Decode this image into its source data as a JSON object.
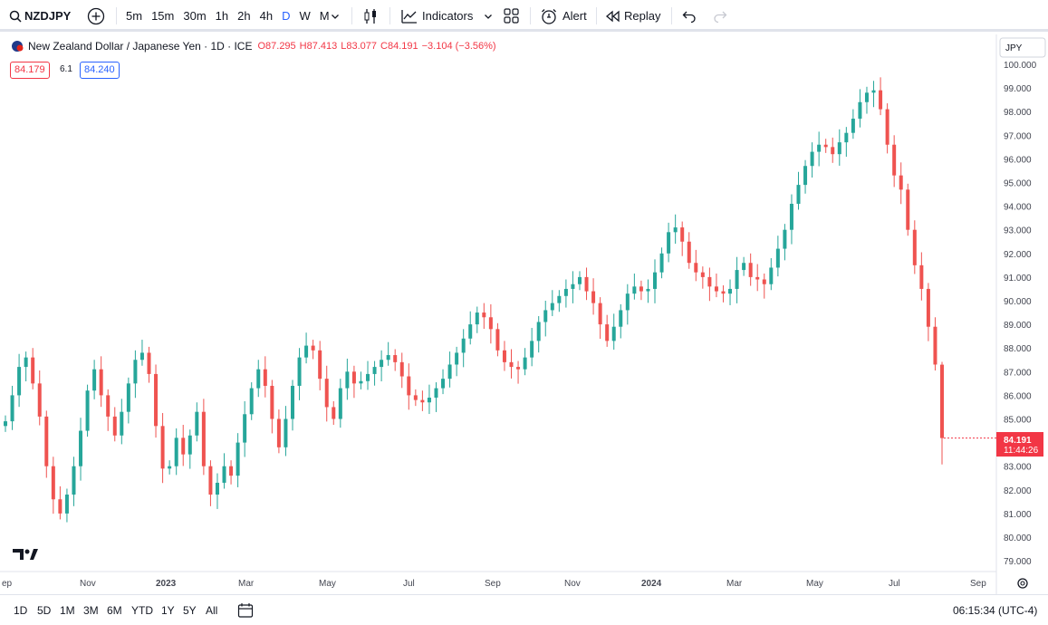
{
  "toolbar": {
    "symbol": "NZDJPY",
    "intervals": [
      "5m",
      "15m",
      "30m",
      "1h",
      "2h",
      "4h",
      "D",
      "W",
      "M"
    ],
    "active_interval": "D",
    "indicators_label": "Indicators",
    "alert_label": "Alert",
    "replay_label": "Replay"
  },
  "legend": {
    "title": "New Zealand Dollar / Japanese Yen · 1D · ICE",
    "open": "O87.295",
    "high": "H87.413",
    "low": "L83.077",
    "close": "C84.191",
    "change": "−3.104 (−3.56%)",
    "bid": "84.179",
    "spread": "6.1",
    "ask": "84.240"
  },
  "price_axis": {
    "currency": "JPY",
    "ticks": [
      "100.000",
      "99.000",
      "98.000",
      "97.000",
      "96.000",
      "95.000",
      "94.000",
      "93.000",
      "92.000",
      "91.000",
      "90.000",
      "89.000",
      "88.000",
      "87.000",
      "86.000",
      "85.000",
      "84.000",
      "83.000",
      "82.000",
      "81.000",
      "80.000",
      "79.000"
    ],
    "last_price": "84.191",
    "countdown": "11:44:26"
  },
  "time_axis": {
    "labels": [
      "ep",
      "Nov",
      "2023",
      "Mar",
      "May",
      "Jul",
      "Sep",
      "Nov",
      "2024",
      "Mar",
      "May",
      "Jul",
      "Sep"
    ]
  },
  "bottom": {
    "ranges": [
      "1D",
      "5D",
      "1M",
      "3M",
      "6M",
      "YTD",
      "1Y",
      "5Y",
      "All"
    ],
    "clock": "06:15:34 (UTC-4)"
  },
  "colors": {
    "up": "#26a69a",
    "down": "#ef5350",
    "accent": "#2962ff",
    "last": "#f23645"
  },
  "chart_data": {
    "type": "candlestick",
    "symbol": "NZDJPY",
    "ylim": [
      78.5,
      100.5
    ],
    "series": [
      {
        "name": "NZDJPY",
        "close": [
          84.9,
          86.0,
          87.2,
          87.6,
          86.5,
          85.1,
          83.0,
          81.6,
          81.0,
          81.8,
          83.0,
          84.5,
          86.2,
          87.1,
          86.0,
          85.1,
          84.3,
          85.3,
          86.5,
          87.5,
          87.8,
          86.9,
          84.7,
          82.9,
          83.0,
          84.2,
          83.5,
          84.3,
          85.3,
          83.0,
          81.8,
          82.3,
          83.0,
          82.6,
          84.0,
          85.2,
          86.3,
          87.1,
          86.4,
          85.0,
          83.8,
          85.0,
          86.4,
          87.6,
          88.1,
          87.9,
          86.7,
          85.5,
          85.0,
          86.3,
          87.0,
          86.5,
          86.6,
          86.9,
          87.2,
          87.5,
          87.7,
          87.4,
          86.8,
          86.0,
          85.8,
          85.7,
          85.9,
          86.3,
          86.7,
          87.3,
          87.8,
          88.4,
          89.0,
          89.5,
          89.3,
          88.8,
          87.9,
          87.4,
          87.2,
          87.1,
          87.6,
          88.3,
          89.1,
          89.6,
          89.9,
          90.2,
          90.5,
          90.7,
          91.0,
          90.4,
          89.9,
          89.0,
          88.3,
          88.9,
          89.6,
          90.3,
          90.6,
          90.4,
          90.5,
          91.2,
          92.0,
          92.9,
          93.1,
          92.5,
          91.6,
          91.2,
          91.0,
          90.6,
          90.4,
          90.3,
          90.5,
          91.3,
          91.6,
          91.0,
          90.9,
          90.7,
          91.4,
          92.2,
          93.0,
          94.1,
          94.9,
          95.7,
          96.3,
          96.6,
          96.5,
          96.2,
          96.7,
          97.1,
          97.7,
          98.4,
          98.8,
          98.9,
          98.1,
          96.6,
          95.3,
          94.7,
          93.0,
          91.5,
          90.5,
          88.9,
          87.3,
          84.191
        ]
      }
    ]
  }
}
